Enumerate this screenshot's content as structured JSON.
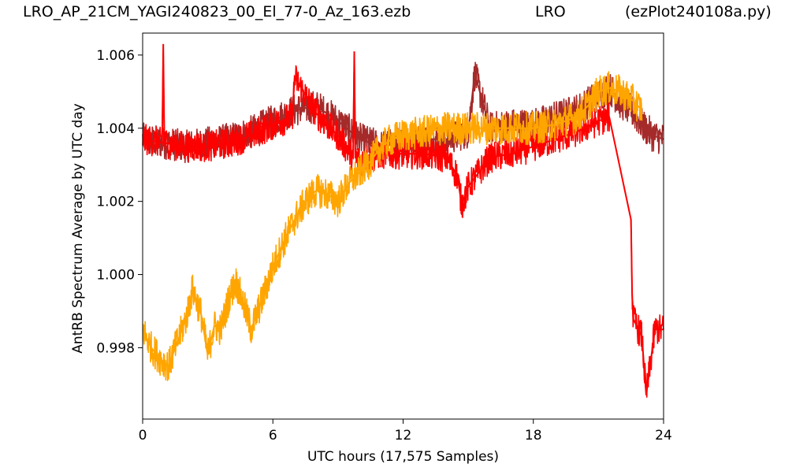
{
  "header": {
    "left": "LRO_AP_21CM_YAGI240823_00_El_77-0_Az_163.ezb",
    "center": "LRO",
    "right": "(ezPlot240108a.py)"
  },
  "chart_data": {
    "type": "line",
    "xlabel": "UTC hours  (17,575 Samples)",
    "ylabel": "AntRB Spectrum Average by UTC day",
    "xlim": [
      0,
      24
    ],
    "ylim": [
      0.99605,
      1.0066
    ],
    "x_ticks": [
      0,
      6,
      12,
      18,
      24
    ],
    "y_ticks": [
      0.998,
      1.0,
      1.002,
      1.004,
      1.006
    ],
    "y_tick_labels": [
      "0.998",
      "1.000",
      "1.002",
      "1.004",
      "1.006"
    ],
    "grid": false,
    "legend": "none",
    "series": [
      {
        "color": "#a52a2a",
        "x": [
          0,
          1,
          2,
          3,
          4,
          5,
          6,
          7,
          8,
          9,
          10,
          11,
          12,
          13,
          14,
          15,
          15.3,
          16,
          17,
          18,
          19,
          20,
          21,
          21.5,
          22,
          22.5,
          23,
          23.5,
          24
        ],
        "y": [
          1.0037,
          1.0036,
          1.0035,
          1.0036,
          1.0037,
          1.0039,
          1.0042,
          1.0045,
          1.0046,
          1.0042,
          1.0037,
          1.0035,
          1.0036,
          1.0037,
          1.0037,
          1.0039,
          1.0055,
          1.004,
          1.0041,
          1.0041,
          1.0043,
          1.0045,
          1.0049,
          1.0051,
          1.0047,
          1.0045,
          1.0041,
          1.0038,
          1.0037
        ]
      },
      {
        "color": "#ff0000",
        "x": [
          0,
          0.9,
          0.95,
          1,
          2,
          3,
          4,
          5,
          6,
          6.9,
          7,
          8,
          9,
          9.7,
          9.75,
          9.8,
          10,
          11,
          12,
          13,
          14,
          14.5,
          14.7,
          15,
          16,
          17,
          18,
          19,
          20,
          21,
          21.5,
          22.5,
          22.55,
          22.6,
          23,
          23.2,
          23.6,
          24
        ],
        "y": [
          1.0037,
          1.0036,
          1.0063,
          1.0036,
          1.0035,
          1.0035,
          1.0036,
          1.0038,
          1.0041,
          1.0043,
          1.0054,
          1.0044,
          1.0038,
          1.0032,
          1.0061,
          1.0032,
          1.0031,
          1.0033,
          1.0033,
          1.0033,
          1.0032,
          1.0027,
          1.0019,
          1.0024,
          1.0032,
          1.0033,
          1.0035,
          1.0037,
          1.0039,
          1.0042,
          1.0043,
          1.0015,
          0.9995,
          0.9988,
          0.9983,
          0.9967,
          0.9985,
          0.9985
        ]
      },
      {
        "color": "#ffa500",
        "x": [
          0,
          0.4,
          0.8,
          1.2,
          1.5,
          2,
          2.3,
          2.7,
          3,
          3.3,
          3.6,
          4,
          4.3,
          4.7,
          5,
          5.5,
          6,
          6.5,
          7,
          7.5,
          8,
          8.5,
          9,
          9.5,
          10,
          10.5,
          11,
          11.5,
          12,
          13,
          14,
          15,
          16,
          17,
          18,
          19,
          20,
          20.5,
          21,
          21.5,
          22,
          22.5,
          23
        ],
        "y": [
          0.9985,
          0.998,
          0.9977,
          0.9975,
          0.998,
          0.9988,
          0.9996,
          0.9989,
          0.9978,
          0.9986,
          0.9985,
          0.9994,
          0.9998,
          0.9991,
          0.9985,
          0.9993,
          1.0002,
          1.0009,
          1.0015,
          1.002,
          1.0023,
          1.0022,
          1.002,
          1.0025,
          1.0028,
          1.0031,
          1.0035,
          1.0037,
          1.0038,
          1.0039,
          1.004,
          1.004,
          1.004,
          1.004,
          1.004,
          1.0041,
          1.0043,
          1.0046,
          1.005,
          1.0051,
          1.005,
          1.0048,
          1.0045
        ]
      }
    ]
  }
}
